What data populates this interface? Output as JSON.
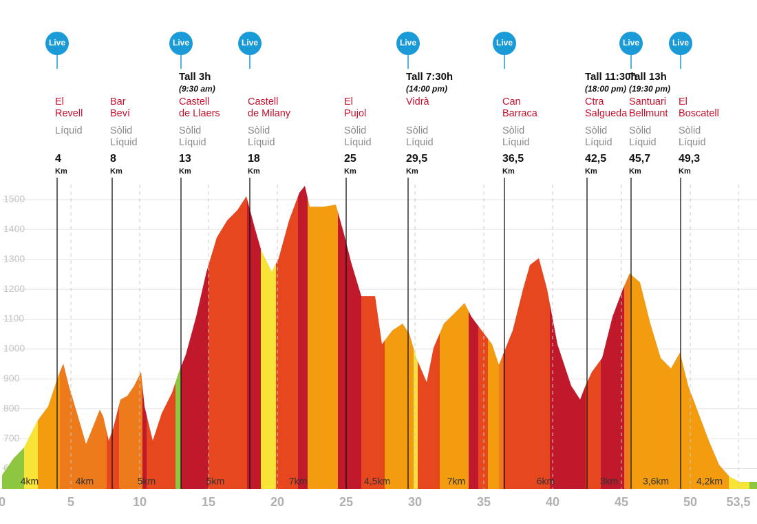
{
  "chart_data": {
    "type": "elevation-profile",
    "live_label": "Live",
    "unit": "Km",
    "xlim": [
      0,
      54.85
    ],
    "xticks": [
      0,
      5,
      10,
      15,
      20,
      25,
      30,
      35,
      40,
      45,
      50,
      {
        "value": 53.5,
        "label": "53,5"
      }
    ],
    "ylim": [
      532,
      1600
    ],
    "yticks": [
      600,
      700,
      800,
      900,
      1000,
      1100,
      1200,
      1300,
      1400,
      1500
    ],
    "grid": true,
    "profile": {
      "x": [
        0,
        0.85,
        1.6,
        2.6,
        3.35,
        4.1,
        4.45,
        4.85,
        5.45,
        6.1,
        6.6,
        7.1,
        7.35,
        7.75,
        8.1,
        8.6,
        9.1,
        9.6,
        10.1,
        10.35,
        10.95,
        11.6,
        12.35,
        12.85,
        13.35,
        14.1,
        14.85,
        15.6,
        16.35,
        17.1,
        17.75,
        18.35,
        18.85,
        19.6,
        20.1,
        20.85,
        21.6,
        22,
        22.35,
        23.35,
        24.25,
        24.85,
        25.35,
        26.1,
        26.6,
        27.1,
        27.6,
        28.35,
        29.1,
        29.6,
        30.1,
        30.85,
        31.35,
        32.1,
        32.85,
        33.6,
        34.1,
        34.85,
        35.6,
        36.1,
        37.1,
        37.85,
        38.35,
        39,
        39.6,
        40.35,
        41.35,
        42,
        42.35,
        42.85,
        43.6,
        44.35,
        45.1,
        45.6,
        46.35,
        47.1,
        47.85,
        48.6,
        49.25,
        49.85,
        50.6,
        51.35,
        52.1,
        52.85,
        53.6,
        54.85
      ],
      "values": [
        578,
        635,
        670,
        762,
        808,
        912,
        951,
        877,
        785,
        682,
        739,
        797,
        774,
        693,
        739,
        831,
        843,
        877,
        923,
        808,
        693,
        785,
        854,
        923,
        981,
        1108,
        1258,
        1373,
        1430,
        1465,
        1511,
        1407,
        1327,
        1258,
        1304,
        1430,
        1523,
        1546,
        1476,
        1476,
        1483,
        1384,
        1292,
        1177,
        1177,
        1177,
        1016,
        1062,
        1085,
        1050,
        970,
        889,
        1004,
        1085,
        1119,
        1154,
        1108,
        1062,
        1016,
        947,
        1062,
        1200,
        1281,
        1304,
        1200,
        1016,
        877,
        831,
        873,
        923,
        970,
        1108,
        1200,
        1253,
        1223,
        1085,
        970,
        935,
        988,
        877,
        785,
        693,
        612,
        573,
        555,
        555
      ]
    },
    "segments": [
      {
        "from": 0,
        "to": 1.6,
        "color": "#8dc63f"
      },
      {
        "from": 1.6,
        "to": 2.6,
        "color": "#f7e436"
      },
      {
        "from": 2.6,
        "to": 4.2,
        "color": "#f39c0f"
      },
      {
        "from": 4.2,
        "to": 7.6,
        "color": "#ee7b1b"
      },
      {
        "from": 7.6,
        "to": 8.5,
        "color": "#e6471f"
      },
      {
        "from": 8.5,
        "to": 10.2,
        "color": "#ee7b1b"
      },
      {
        "from": 10.2,
        "to": 10.5,
        "color": "#c0192b"
      },
      {
        "from": 10.5,
        "to": 12.6,
        "color": "#e6471f"
      },
      {
        "from": 12.6,
        "to": 13.0,
        "color": "#8dc63f"
      },
      {
        "from": 13.0,
        "to": 15.0,
        "color": "#c0192b"
      },
      {
        "from": 15.0,
        "to": 17.8,
        "color": "#e6471f"
      },
      {
        "from": 17.8,
        "to": 18.8,
        "color": "#c0192b"
      },
      {
        "from": 18.8,
        "to": 19.9,
        "color": "#f7e436"
      },
      {
        "from": 19.9,
        "to": 21.5,
        "color": "#e6471f"
      },
      {
        "from": 21.5,
        "to": 22.2,
        "color": "#c0192b"
      },
      {
        "from": 22.2,
        "to": 24.4,
        "color": "#f39c0f"
      },
      {
        "from": 24.4,
        "to": 26.1,
        "color": "#c0192b"
      },
      {
        "from": 26.1,
        "to": 27.8,
        "color": "#e6471f"
      },
      {
        "from": 27.8,
        "to": 29.9,
        "color": "#f39c0f"
      },
      {
        "from": 29.9,
        "to": 30.2,
        "color": "#f7e436"
      },
      {
        "from": 30.2,
        "to": 31.8,
        "color": "#e6471f"
      },
      {
        "from": 31.8,
        "to": 33.9,
        "color": "#f39c0f"
      },
      {
        "from": 33.9,
        "to": 34.6,
        "color": "#c0192b"
      },
      {
        "from": 34.6,
        "to": 35.3,
        "color": "#e6471f"
      },
      {
        "from": 35.3,
        "to": 36.1,
        "color": "#f39c0f"
      },
      {
        "from": 36.1,
        "to": 36.4,
        "color": "#ee7b1b"
      },
      {
        "from": 36.4,
        "to": 39.8,
        "color": "#e6471f"
      },
      {
        "from": 39.8,
        "to": 42.4,
        "color": "#c0192b"
      },
      {
        "from": 42.4,
        "to": 43.5,
        "color": "#e6471f"
      },
      {
        "from": 43.5,
        "to": 45.2,
        "color": "#c0192b"
      },
      {
        "from": 45.2,
        "to": 45.6,
        "color": "#ee7b1b"
      },
      {
        "from": 45.6,
        "to": 52.8,
        "color": "#f39c0f"
      },
      {
        "from": 52.8,
        "to": 54.3,
        "color": "#f7e436"
      },
      {
        "from": 54.3,
        "to": 54.85,
        "color": "#8dc63f"
      }
    ],
    "checkpoints": [
      {
        "name": [
          "El",
          "Revell"
        ],
        "supply": [
          "Líquid"
        ],
        "km": 4,
        "live": true
      },
      {
        "name": [
          "Bar",
          "Beví"
        ],
        "supply": [
          "Sòlid",
          "Líquid"
        ],
        "km": 8,
        "live": false
      },
      {
        "name": [
          "Castell",
          "de Llaers"
        ],
        "supply": [
          "Sòlid",
          "Líquid"
        ],
        "km": 13,
        "live": true,
        "cutoff": [
          "Tall 3h",
          "(9:30 am)"
        ]
      },
      {
        "name": [
          "Castell",
          "de Milany"
        ],
        "supply": [
          "Sòlid",
          "Líquid"
        ],
        "km": 18,
        "live": true
      },
      {
        "name": [
          "El",
          "Pujol"
        ],
        "supply": [
          "Sòlid",
          "Líquid"
        ],
        "km": 25,
        "live": false
      },
      {
        "name": [
          "Vidrà"
        ],
        "supply": [
          "Sòlid",
          "Líquid"
        ],
        "km": 29.5,
        "km_label": "29,5",
        "live": true,
        "cutoff": [
          "Tall 7:30h",
          "(14:00 pm)"
        ]
      },
      {
        "name": [
          "Can",
          "Barraca"
        ],
        "supply": [
          "Sòlid",
          "Líquid"
        ],
        "km": 36.5,
        "km_label": "36,5",
        "live": true
      },
      {
        "name": [
          "Ctra",
          "Salgueda"
        ],
        "supply": [
          "Sòlid",
          "Líquid"
        ],
        "km": 42.5,
        "km_label": "42,5",
        "live": false,
        "cutoff": [
          "Tall 11:30h",
          "(18:00 pm)"
        ]
      },
      {
        "name": [
          "Santuari",
          "Bellmunt"
        ],
        "supply": [
          "Sòlid",
          "Líquid"
        ],
        "km": 45.7,
        "km_label": "45,7",
        "live": true,
        "cutoff": [
          "Tall 13h",
          "(19:30 pm)"
        ]
      },
      {
        "name": [
          "El",
          "Boscatell"
        ],
        "supply": [
          "Sòlid",
          "Líquid"
        ],
        "km": 49.3,
        "km_label": "49,3",
        "live": true
      }
    ],
    "intervals": [
      "4km",
      "4km",
      "5km",
      "5km",
      "7km",
      "4,5km",
      "7km",
      "6km",
      "3km",
      "3,6km",
      "4,2km"
    ]
  }
}
